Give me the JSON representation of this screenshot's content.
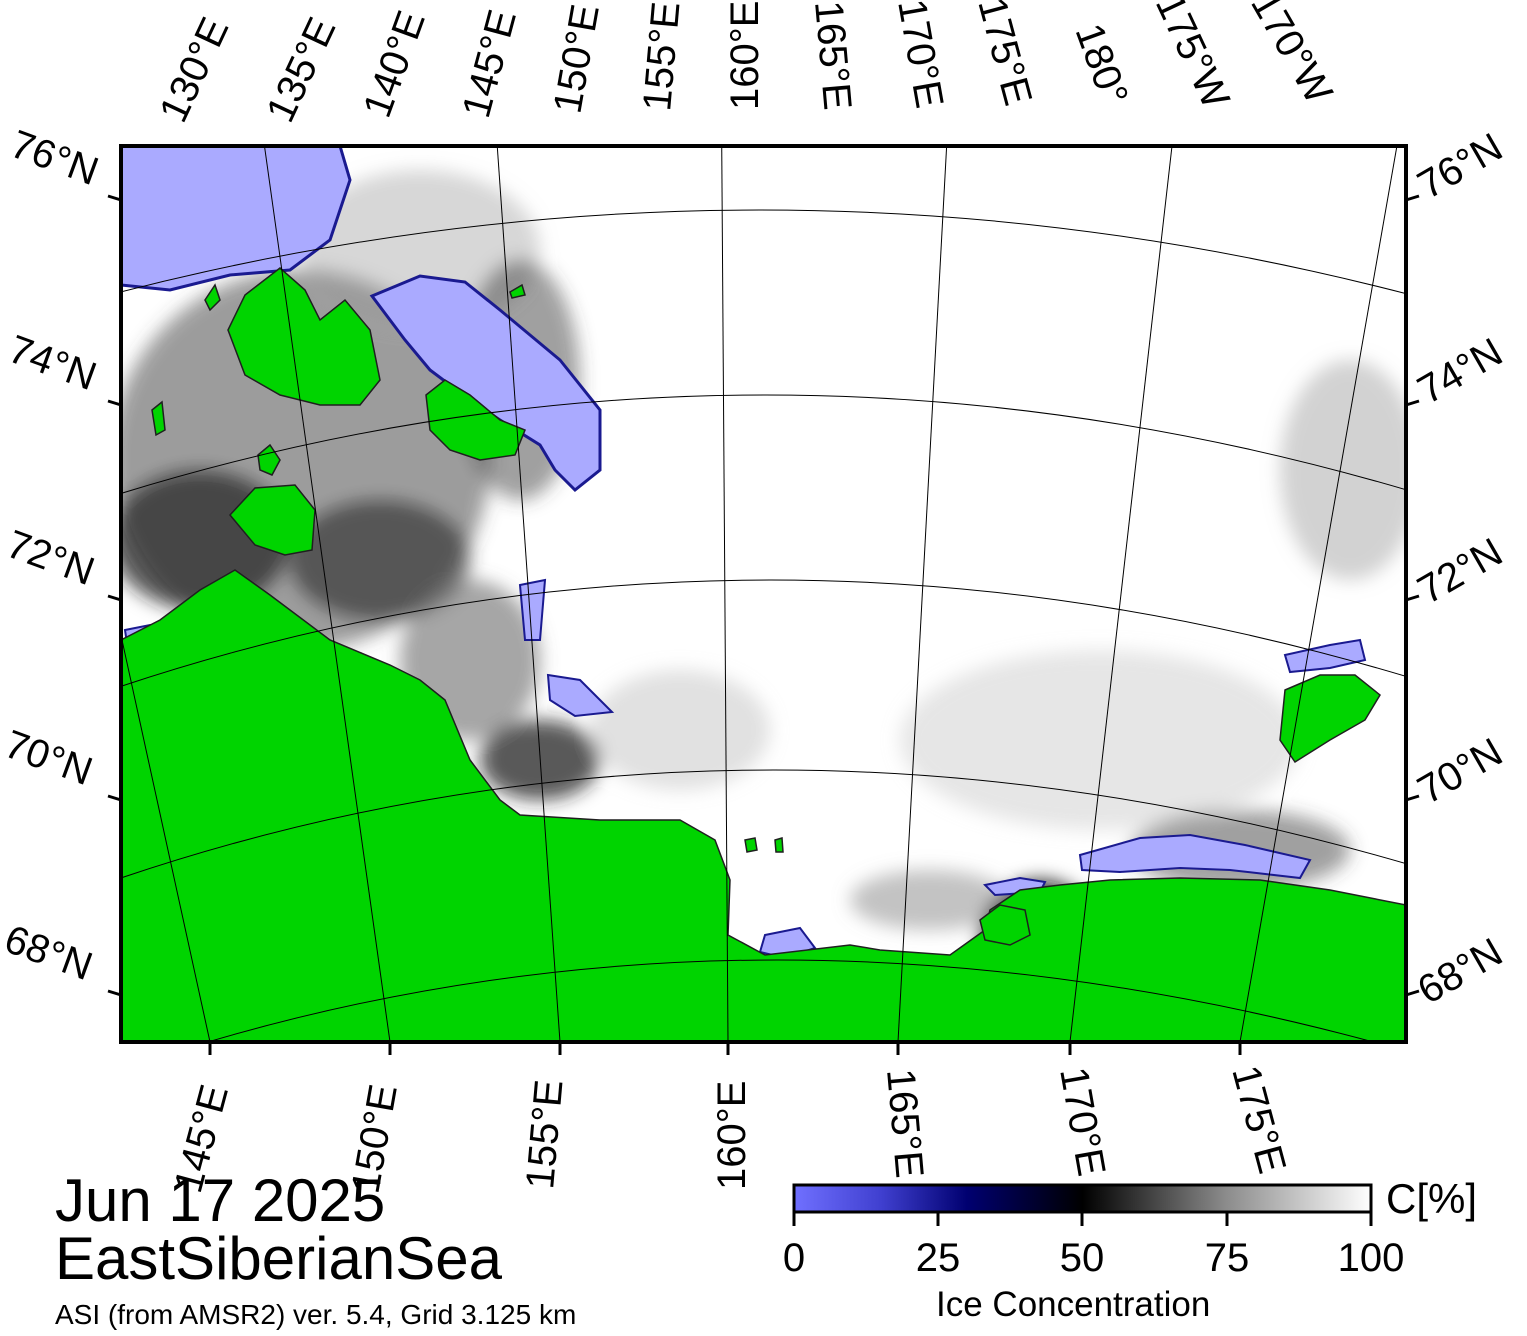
{
  "title": {
    "date": "Jun 17 2025",
    "region": "EastSiberianSea",
    "credit": "ASI (from AMSR2) ver. 5.4,  Grid 3.125 km"
  },
  "map": {
    "top_lon_labels": [
      "130°E",
      "135°E",
      "140°E",
      "145°E",
      "150°E",
      "155°E",
      "160°E",
      "165°E",
      "170°E",
      "175°E",
      "180°",
      "175°W",
      "170°W"
    ],
    "bottom_lon_labels": [
      "145°E",
      "150°E",
      "155°E",
      "160°E",
      "165°E",
      "170°E",
      "175°E"
    ],
    "left_lat_labels": [
      "76°N",
      "74°N",
      "72°N",
      "70°N",
      "68°N"
    ],
    "right_lat_labels": [
      "76°N",
      "74°N",
      "72°N",
      "70°N",
      "68°N"
    ],
    "colors": {
      "land": "#00d400",
      "open_water": "#ffffff",
      "frame": "#000000",
      "low_ice": "#aaaaff"
    }
  },
  "colorbar": {
    "title": "Ice Concentration",
    "unit": "C[%]",
    "ticks": [
      "0",
      "25",
      "50",
      "75",
      "100"
    ],
    "gradient": [
      {
        "value": 0,
        "color": "#7070ff"
      },
      {
        "value": 15,
        "color": "#4040d0"
      },
      {
        "value": 30,
        "color": "#000070"
      },
      {
        "value": 50,
        "color": "#000000"
      },
      {
        "value": 75,
        "color": "#8c8c8c"
      },
      {
        "value": 100,
        "color": "#ffffff"
      }
    ]
  }
}
